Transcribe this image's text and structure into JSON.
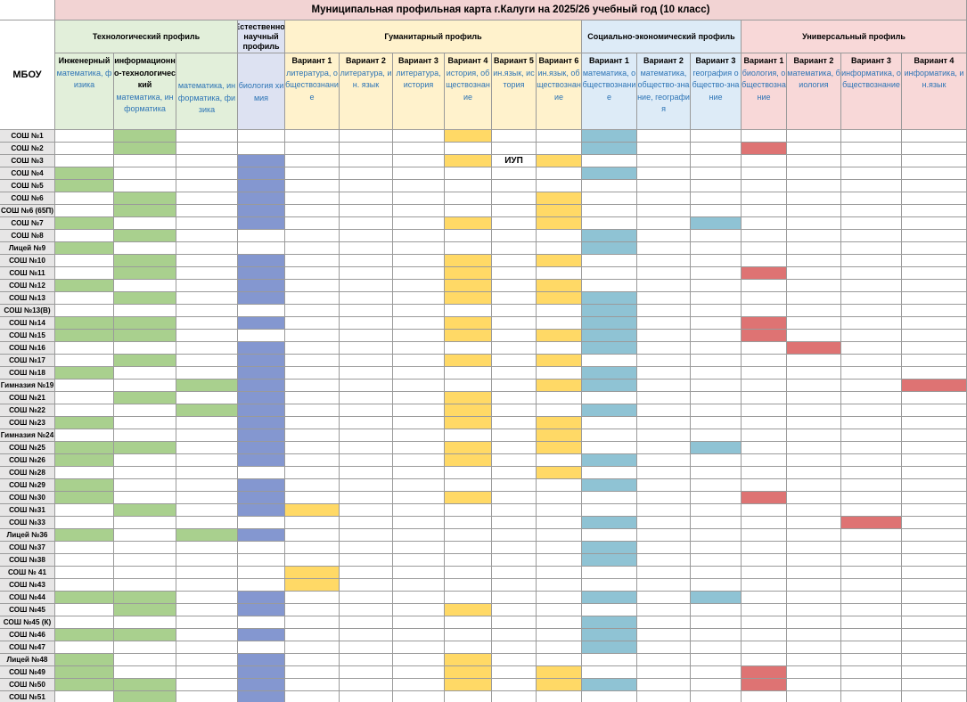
{
  "title": "Муниципальная профильная карта г.Калуги на 2025/26 учебный год (10 класс)",
  "mbou_header": "МБОУ",
  "groups": [
    {
      "key": "tech",
      "label": "Технологический профиль"
    },
    {
      "key": "nat",
      "label": "Естественно-научный профиль"
    },
    {
      "key": "hum",
      "label": "Гуманитарный профиль"
    },
    {
      "key": "soc",
      "label": "Социально-экономический профиль"
    },
    {
      "key": "uni",
      "label": "Универсальный профиль"
    }
  ],
  "columns": [
    {
      "group": "tech",
      "name": "Инженерный",
      "subjects": "математика, физика"
    },
    {
      "group": "tech",
      "name": "информационно-технологический",
      "subjects": "математика, информатика"
    },
    {
      "group": "tech",
      "name": "",
      "subjects": "математика, информатика, физика"
    },
    {
      "group": "nat",
      "name": "",
      "subjects": "биология химия"
    },
    {
      "group": "hum",
      "name": "Вариант 1",
      "subjects": "литература, обществознание"
    },
    {
      "group": "hum",
      "name": "Вариант 2",
      "subjects": "литература, ин. язык"
    },
    {
      "group": "hum",
      "name": "Вариант 3",
      "subjects": "литература, история"
    },
    {
      "group": "hum",
      "name": "Вариант 4",
      "subjects": "история, обществознание"
    },
    {
      "group": "hum",
      "name": "Вариант 5",
      "subjects": "ин.язык, история"
    },
    {
      "group": "hum",
      "name": "Вариант 6",
      "subjects": "ин.язык, обществознание"
    },
    {
      "group": "soc",
      "name": "Вариант 1",
      "subjects": "математика, обществознание"
    },
    {
      "group": "soc",
      "name": "Вариант 2",
      "subjects": "математика, общество-знание, география"
    },
    {
      "group": "soc",
      "name": "Вариант 3",
      "subjects": "география общество-знание"
    },
    {
      "group": "uni",
      "name": "Вариант 1",
      "subjects": "биология, обществознание"
    },
    {
      "group": "uni",
      "name": "Вариант 2",
      "subjects": "математика, биология"
    },
    {
      "group": "uni",
      "name": "Вариант 3",
      "subjects": "информатика, обществознание"
    },
    {
      "group": "uni",
      "name": "Вариант 4",
      "subjects": "информатика, ин.язык"
    }
  ],
  "colors": {
    "tech_fill": "#a9d08e",
    "nat_fill": "#8497d0",
    "hum_fill": "#ffd966",
    "soc_fill": "#8fc3d4",
    "uni_fill": "#de7373"
  },
  "iup_label": "ИУП",
  "schools": [
    {
      "name": "СОШ №1",
      "cols": [
        1,
        7,
        10
      ]
    },
    {
      "name": "СОШ №2",
      "cols": [
        1,
        10,
        13
      ]
    },
    {
      "name": "СОШ №3",
      "cols": [
        3,
        7,
        9
      ],
      "iup": 8
    },
    {
      "name": "СОШ №4",
      "cols": [
        0,
        3,
        10
      ]
    },
    {
      "name": "СОШ №5",
      "cols": [
        0,
        3
      ]
    },
    {
      "name": "СОШ №6",
      "cols": [
        1,
        3,
        9
      ]
    },
    {
      "name": "СОШ №6 (65П)",
      "cols": [
        1,
        3,
        9
      ]
    },
    {
      "name": "СОШ №7",
      "cols": [
        0,
        3,
        7,
        9,
        12
      ]
    },
    {
      "name": "СОШ №8",
      "cols": [
        1,
        10
      ]
    },
    {
      "name": "Лицей №9",
      "cols": [
        0,
        10
      ]
    },
    {
      "name": "СОШ №10",
      "cols": [
        1,
        3,
        7,
        9
      ]
    },
    {
      "name": "СОШ №11",
      "cols": [
        1,
        3,
        7,
        13
      ]
    },
    {
      "name": "СОШ №12",
      "cols": [
        0,
        3,
        7,
        9
      ]
    },
    {
      "name": "СОШ №13",
      "cols": [
        1,
        3,
        7,
        9,
        10
      ]
    },
    {
      "name": "СОШ №13(В)",
      "cols": [
        10
      ]
    },
    {
      "name": "СОШ №14",
      "cols": [
        0,
        1,
        3,
        7,
        10,
        13
      ]
    },
    {
      "name": "СОШ №15",
      "cols": [
        0,
        1,
        7,
        9,
        10,
        13
      ]
    },
    {
      "name": "СОШ №16",
      "cols": [
        3,
        10,
        14
      ]
    },
    {
      "name": "СОШ №17",
      "cols": [
        1,
        3,
        7,
        9
      ]
    },
    {
      "name": "СОШ №18",
      "cols": [
        0,
        3,
        10
      ]
    },
    {
      "name": "Гимназия №19",
      "cols": [
        2,
        3,
        9,
        10,
        16
      ]
    },
    {
      "name": "СОШ №21",
      "cols": [
        1,
        3,
        7
      ]
    },
    {
      "name": "СОШ №22",
      "cols": [
        2,
        3,
        7,
        10
      ]
    },
    {
      "name": "СОШ №23",
      "cols": [
        0,
        3,
        7,
        9
      ]
    },
    {
      "name": "Гимназия №24",
      "cols": [
        3,
        9
      ]
    },
    {
      "name": "СОШ №25",
      "cols": [
        0,
        1,
        3,
        7,
        9,
        12
      ]
    },
    {
      "name": "СОШ №26",
      "cols": [
        0,
        3,
        7,
        10
      ]
    },
    {
      "name": "СОШ №28",
      "cols": [
        9
      ]
    },
    {
      "name": "СОШ №29",
      "cols": [
        0,
        3,
        10
      ]
    },
    {
      "name": "СОШ №30",
      "cols": [
        0,
        3,
        7,
        13
      ]
    },
    {
      "name": "СОШ №31",
      "cols": [
        1,
        3,
        4
      ]
    },
    {
      "name": "СОШ №33",
      "cols": [
        10,
        15
      ]
    },
    {
      "name": "Лицей №36",
      "cols": [
        0,
        2,
        3
      ]
    },
    {
      "name": "СОШ №37",
      "cols": [
        10
      ]
    },
    {
      "name": "СОШ №38",
      "cols": [
        10
      ]
    },
    {
      "name": "СОШ № 41",
      "cols": [
        4
      ]
    },
    {
      "name": "СОШ №43",
      "cols": [
        4
      ]
    },
    {
      "name": "СОШ №44",
      "cols": [
        0,
        1,
        3,
        10,
        12
      ]
    },
    {
      "name": "СОШ №45",
      "cols": [
        1,
        3,
        7
      ]
    },
    {
      "name": "СОШ №45 (К)",
      "cols": [
        10
      ]
    },
    {
      "name": "СОШ №46",
      "cols": [
        0,
        1,
        3,
        10
      ]
    },
    {
      "name": "СОШ №47",
      "cols": [
        10
      ]
    },
    {
      "name": "Лицей №48",
      "cols": [
        0,
        3,
        7
      ]
    },
    {
      "name": "СОШ №49",
      "cols": [
        0,
        3,
        7,
        9,
        13
      ]
    },
    {
      "name": "СОШ №50",
      "cols": [
        0,
        1,
        3,
        7,
        9,
        10,
        13
      ]
    },
    {
      "name": "СОШ №51",
      "cols": [
        1,
        3
      ]
    }
  ]
}
